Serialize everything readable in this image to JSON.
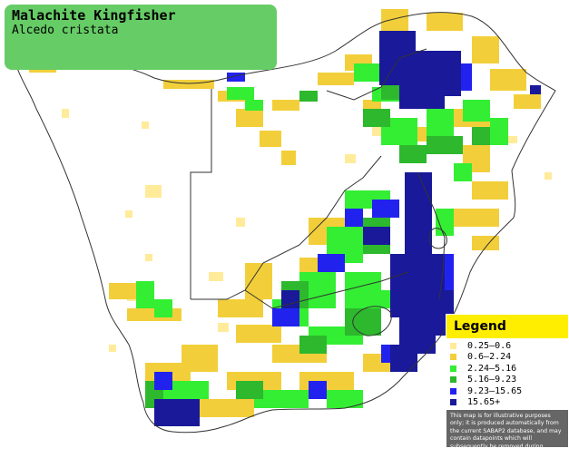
{
  "title": {
    "common_name": "Malachite Kingfisher",
    "scientific_name": "Alcedo cristata"
  },
  "legend": {
    "heading": "Legend",
    "items": [
      {
        "label": "0.25–0.6",
        "color": "#ffeb99"
      },
      {
        "label": "0.6–2.24",
        "color": "#f2cf3a"
      },
      {
        "label": "2.24–5.16",
        "color": "#33ee33"
      },
      {
        "label": "5.16–9.23",
        "color": "#2db82d"
      },
      {
        "label": "9.23–15.65",
        "color": "#2222ee"
      },
      {
        "label": "15.65+",
        "color": "#191999"
      }
    ],
    "disclaimer": "This map is for illustrative purposes only; it is produced automatically from the current SABAP2 database, and may contain datapoints which will subsequently be removed during checking operations."
  },
  "colors": {
    "background": "#ffffff",
    "title_box": "#66cc66",
    "legend_header": "#ffee00",
    "border_line": "#333333"
  }
}
